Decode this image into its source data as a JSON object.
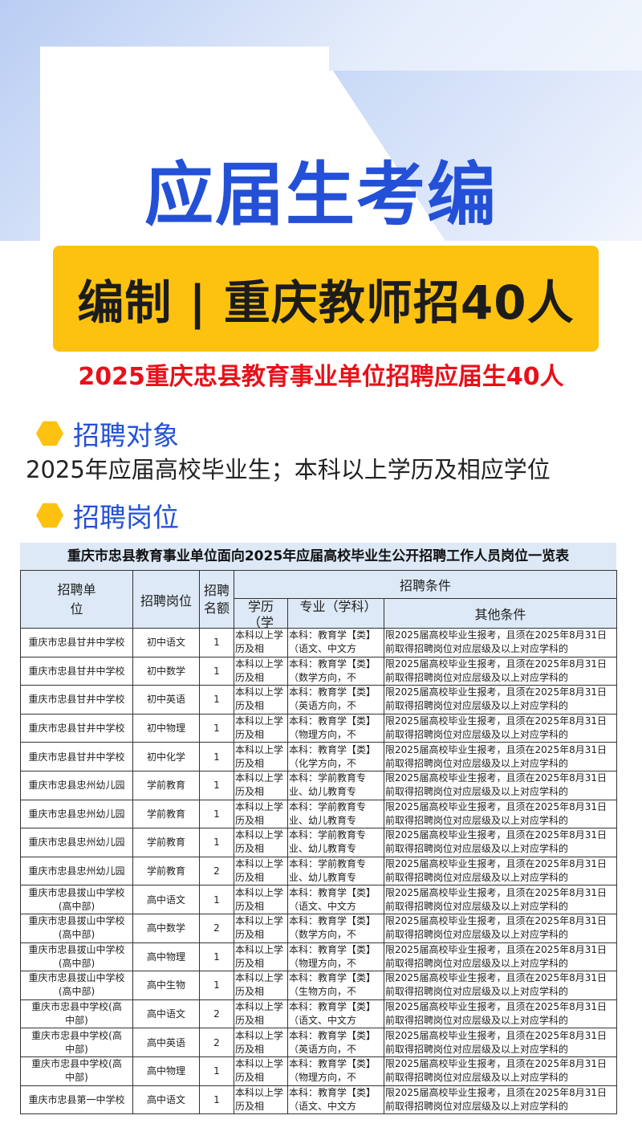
{
  "headline": "应届生考编",
  "banner": "编制 | 重庆教师招40人",
  "subtitle": "2025重庆忠县教育事业单位招聘应届生40人",
  "sections": [
    {
      "title": "招聘对象",
      "text": "2025年应届高校毕业生；本科以上学历及相应学位"
    },
    {
      "title": "招聘岗位"
    }
  ],
  "colors": {
    "blue": "#2350d6",
    "yellow": "#fdc20f",
    "red": "#e8101a",
    "header_bg": "#dde9f6"
  },
  "table": {
    "title": "重庆市忠县教育事业单位面向2025年应届高校毕业生公开招聘工作人员岗位一览表",
    "headers": {
      "unit": "招聘单位",
      "post": "招聘岗位",
      "count": "招聘名额",
      "conditions": "招聘条件",
      "edu": "学历（学位）",
      "major": "专业（学科）",
      "other": "其他条件"
    },
    "rows": [
      {
        "unit": "重庆市忠县甘井中学校",
        "post": "初中语文",
        "count": "1",
        "edu": "本科以上学历及相",
        "major": "本科：教育学【类】（语文、中文方",
        "other": "限2025届高校毕业生报考，且须在2025年8月31日前取得招聘岗位对应层级及以上对应学科的"
      },
      {
        "unit": "重庆市忠县甘井中学校",
        "post": "初中数学",
        "count": "1",
        "edu": "本科以上学历及相",
        "major": "本科：教育学【类】（数学方向，不",
        "other": "限2025届高校毕业生报考，且须在2025年8月31日前取得招聘岗位对应层级及以上对应学科的"
      },
      {
        "unit": "重庆市忠县甘井中学校",
        "post": "初中英语",
        "count": "1",
        "edu": "本科以上学历及相",
        "major": "本科：教育学【类】（英语方向，不",
        "other": "限2025届高校毕业生报考，且须在2025年8月31日前取得招聘岗位对应层级及以上对应学科的"
      },
      {
        "unit": "重庆市忠县甘井中学校",
        "post": "初中物理",
        "count": "1",
        "edu": "本科以上学历及相",
        "major": "本科：教育学【类】（物理方向，不",
        "other": "限2025届高校毕业生报考，且须在2025年8月31日前取得招聘岗位对应层级及以上对应学科的"
      },
      {
        "unit": "重庆市忠县甘井中学校",
        "post": "初中化学",
        "count": "1",
        "edu": "本科以上学历及相",
        "major": "本科：教育学【类】（化学方向，不",
        "other": "限2025届高校毕业生报考，且须在2025年8月31日前取得招聘岗位对应层级及以上对应学科的"
      },
      {
        "unit": "重庆市忠县忠州幼儿园",
        "post": "学前教育",
        "count": "1",
        "edu": "本科以上学历及相",
        "major": "本科：学前教育专业、幼儿教育专",
        "other": "限2025届高校毕业生报考，且须在2025年8月31日前取得招聘岗位对应层级及以上对应学科的"
      },
      {
        "unit": "重庆市忠县忠州幼儿园",
        "post": "学前教育",
        "count": "1",
        "edu": "本科以上学历及相",
        "major": "本科：学前教育专业、幼儿教育专",
        "other": "限2025届高校毕业生报考，且须在2025年8月31日前取得招聘岗位对应层级及以上对应学科的"
      },
      {
        "unit": "重庆市忠县忠州幼儿园",
        "post": "学前教育",
        "count": "1",
        "edu": "本科以上学历及相",
        "major": "本科：学前教育专业、幼儿教育专",
        "other": "限2025届高校毕业生报考，且须在2025年8月31日前取得招聘岗位对应层级及以上对应学科的"
      },
      {
        "unit": "重庆市忠县忠州幼儿园",
        "post": "学前教育",
        "count": "2",
        "edu": "本科以上学历及相",
        "major": "本科：学前教育专业、幼儿教育专",
        "other": "限2025届高校毕业生报考，且须在2025年8月31日前取得招聘岗位对应层级及以上对应学科的"
      },
      {
        "unit": "重庆市忠县拔山中学校(高中部)",
        "post": "高中语文",
        "count": "1",
        "edu": "本科以上学历及相",
        "major": "本科：教育学【类】（语文、中文方",
        "other": "限2025届高校毕业生报考，且须在2025年8月31日前取得招聘岗位对应层级及以上对应学科的"
      },
      {
        "unit": "重庆市忠县拔山中学校(高中部)",
        "post": "高中数学",
        "count": "2",
        "edu": "本科以上学历及相",
        "major": "本科：教育学【类】（数学方向，不",
        "other": "限2025届高校毕业生报考，且须在2025年8月31日前取得招聘岗位对应层级及以上对应学科的"
      },
      {
        "unit": "重庆市忠县拔山中学校(高中部)",
        "post": "高中物理",
        "count": "1",
        "edu": "本科以上学历及相",
        "major": "本科：教育学【类】（物理方向，不",
        "other": "限2025届高校毕业生报考，且须在2025年8月31日前取得招聘岗位对应层级及以上对应学科的"
      },
      {
        "unit": "重庆市忠县拔山中学校(高中部)",
        "post": "高中生物",
        "count": "1",
        "edu": "本科以上学历及相",
        "major": "本科：教育学【类】（生物方向，不",
        "other": "限2025届高校毕业生报考，且须在2025年8月31日前取得招聘岗位对应层级及以上对应学科的"
      },
      {
        "unit": "重庆市忠县中学校(高中部)",
        "post": "高中语文",
        "count": "2",
        "edu": "本科以上学历及相",
        "major": "本科：教育学【类】（语文、中文方",
        "other": "限2025届高校毕业生报考，且须在2025年8月31日前取得招聘岗位对应层级及以上对应学科的"
      },
      {
        "unit": "重庆市忠县中学校(高中部)",
        "post": "高中英语",
        "count": "2",
        "edu": "本科以上学历及相",
        "major": "本科：教育学【类】（英语方向，不",
        "other": "限2025届高校毕业生报考，且须在2025年8月31日前取得招聘岗位对应层级及以上对应学科的"
      },
      {
        "unit": "重庆市忠县中学校(高中部)",
        "post": "高中物理",
        "count": "1",
        "edu": "本科以上学历及相",
        "major": "本科：教育学【类】（物理方向，不",
        "other": "限2025届高校毕业生报考，且须在2025年8月31日前取得招聘岗位对应层级及以上对应学科的"
      },
      {
        "unit": "重庆市忠县第一中学校",
        "post": "高中语文",
        "count": "1",
        "edu": "本科以上学历及相",
        "major": "本科：教育学【类】（语文、中文方",
        "other": "限2025届高校毕业生报考，且须在2025年8月31日前取得招聘岗位对应层级及以上对应学科的"
      }
    ]
  }
}
